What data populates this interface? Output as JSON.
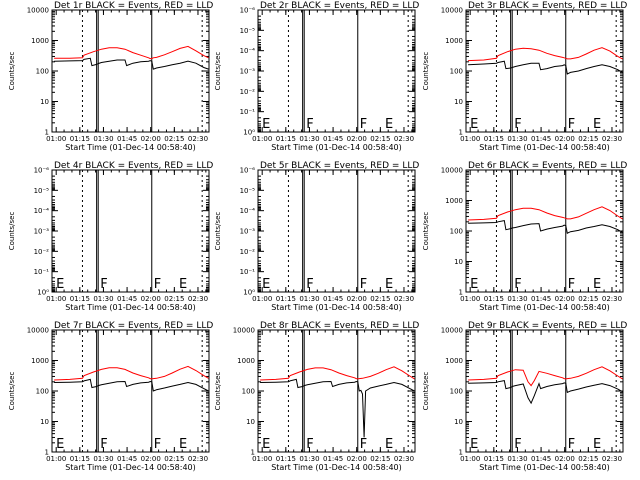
{
  "figure": {
    "xlabel": "Start Time (01-Dec-14 00:58:40)",
    "ylabel": "Counts/sec",
    "xtick_labels": [
      "01:00",
      "01:15",
      "01:30",
      "01:45",
      "02:00",
      "02:15",
      "02:30"
    ],
    "colors": {
      "events": "#000000",
      "lld": "#ff0000"
    }
  },
  "chart_data": [
    {
      "type": "line",
      "title": "Det 1r BLACK = Events, RED = LLD",
      "xlim": [
        -1.33,
        98.33
      ],
      "ylim": [
        1,
        10000
      ],
      "yscale": "log",
      "ytick_values": [
        1,
        10,
        100,
        1000,
        10000
      ],
      "ytick_labels": [
        "1",
        "10",
        "100",
        "1000",
        "10000"
      ],
      "dotted_lines": [
        18,
        94
      ],
      "solid_lines": [
        27,
        28,
        62
      ],
      "markers": [],
      "series": [
        {
          "color": "#ff0000",
          "x": [
            0,
            10,
            18,
            19,
            25,
            30,
            35,
            40,
            45,
            50,
            55,
            60,
            61,
            62,
            63,
            65,
            70,
            75,
            80,
            85,
            90,
            95,
            98
          ],
          "y": [
            260,
            260,
            270,
            330,
            430,
            520,
            580,
            580,
            520,
            400,
            330,
            270,
            255,
            255,
            270,
            280,
            340,
            430,
            550,
            640,
            460,
            320,
            270
          ]
        },
        {
          "color": "#000000",
          "x": [
            0,
            10,
            18,
            19,
            23,
            24,
            27,
            28,
            30,
            35,
            40,
            45,
            46,
            50,
            55,
            60,
            61,
            62,
            63,
            64,
            65,
            70,
            75,
            80,
            85,
            90,
            95,
            98
          ],
          "y": [
            210,
            215,
            220,
            240,
            260,
            150,
            165,
            175,
            190,
            210,
            230,
            230,
            150,
            180,
            200,
            210,
            220,
            210,
            115,
            120,
            125,
            140,
            160,
            180,
            210,
            180,
            130,
            115
          ]
        }
      ]
    },
    {
      "type": "line",
      "title": "Det 2r BLACK = Events, RED = LLD",
      "xlim": [
        -1.33,
        98.33
      ],
      "ylim": [
        1,
        1e-06
      ],
      "yscale": "log",
      "ytick_values": [
        1,
        0.1,
        0.01,
        0.001,
        0.0001,
        1e-05,
        1e-06
      ],
      "ytick_labels": [
        "10⁰",
        "10⁻¹",
        "10⁻²",
        "10⁻³",
        "10⁻⁴",
        "10⁻⁵",
        "10⁻⁶"
      ],
      "dotted_lines": [
        18,
        94
      ],
      "solid_lines": [
        27,
        28,
        62
      ],
      "markers": [
        {
          "text": "E",
          "x": 0
        },
        {
          "text": "F",
          "x": 28
        },
        {
          "text": "F",
          "x": 62
        },
        {
          "text": "E",
          "x": 78
        }
      ],
      "series": []
    },
    {
      "type": "line",
      "title": "Det 3r BLACK = Events, RED = LLD",
      "xlim": [
        -1.33,
        98.33
      ],
      "ylim": [
        1,
        10000
      ],
      "yscale": "log",
      "ytick_values": [
        1,
        10,
        100,
        1000,
        10000
      ],
      "ytick_labels": [
        "1",
        "10",
        "100",
        "1000",
        "10000"
      ],
      "dotted_lines": [
        18,
        94
      ],
      "solid_lines": [
        27,
        28,
        62
      ],
      "markers": [
        {
          "text": "E",
          "x": 0
        },
        {
          "text": "F",
          "x": 28
        },
        {
          "text": "F",
          "x": 62
        },
        {
          "text": "E",
          "x": 78
        }
      ],
      "series": [
        {
          "color": "#ff0000",
          "x": [
            0,
            10,
            18,
            19,
            25,
            30,
            35,
            40,
            45,
            50,
            55,
            60,
            61,
            62,
            63,
            65,
            70,
            75,
            80,
            85,
            90,
            95,
            98
          ],
          "y": [
            220,
            230,
            260,
            320,
            430,
            520,
            560,
            540,
            480,
            380,
            320,
            280,
            270,
            260,
            250,
            250,
            280,
            360,
            480,
            580,
            450,
            300,
            250
          ]
        },
        {
          "color": "#000000",
          "x": [
            0,
            10,
            18,
            19,
            23,
            24,
            27,
            28,
            30,
            35,
            40,
            45,
            46,
            50,
            55,
            60,
            61,
            62,
            63,
            64,
            65,
            70,
            75,
            80,
            85,
            90,
            95,
            98
          ],
          "y": [
            160,
            170,
            180,
            190,
            210,
            120,
            125,
            130,
            140,
            160,
            180,
            180,
            110,
            120,
            140,
            150,
            160,
            150,
            80,
            85,
            90,
            100,
            120,
            140,
            160,
            140,
            110,
            90
          ]
        }
      ]
    },
    {
      "type": "line",
      "title": "Det 4r BLACK = Events, RED = LLD",
      "xlim": [
        -1.33,
        98.33
      ],
      "ylim": [
        1,
        1e-06
      ],
      "yscale": "log",
      "ytick_values": [
        1,
        0.1,
        0.01,
        0.001,
        0.0001,
        1e-05,
        1e-06
      ],
      "ytick_labels": [
        "10⁰",
        "10⁻¹",
        "10⁻²",
        "10⁻³",
        "10⁻⁴",
        "10⁻⁵",
        "10⁻⁶"
      ],
      "dotted_lines": [
        18,
        94
      ],
      "solid_lines": [
        27,
        28,
        62
      ],
      "markers": [
        {
          "text": "E",
          "x": 0
        },
        {
          "text": "F",
          "x": 28
        },
        {
          "text": "F",
          "x": 62
        },
        {
          "text": "E",
          "x": 78
        }
      ],
      "series": []
    },
    {
      "type": "line",
      "title": "Det 5r BLACK = Events, RED = LLD",
      "xlim": [
        -1.33,
        98.33
      ],
      "ylim": [
        1,
        1e-06
      ],
      "yscale": "log",
      "ytick_values": [
        1,
        0.1,
        0.01,
        0.001,
        0.0001,
        1e-05,
        1e-06
      ],
      "ytick_labels": [
        "10⁰",
        "10⁻¹",
        "10⁻²",
        "10⁻³",
        "10⁻⁴",
        "10⁻⁵",
        "10⁻⁶"
      ],
      "dotted_lines": [
        18,
        94
      ],
      "solid_lines": [
        27,
        28,
        62
      ],
      "markers": [
        {
          "text": "E",
          "x": 0
        },
        {
          "text": "F",
          "x": 28
        },
        {
          "text": "F",
          "x": 62
        },
        {
          "text": "E",
          "x": 78
        }
      ],
      "series": []
    },
    {
      "type": "line",
      "title": "Det 6r BLACK = Events, RED = LLD",
      "xlim": [
        -1.33,
        98.33
      ],
      "ylim": [
        1,
        10000
      ],
      "yscale": "log",
      "ytick_values": [
        1,
        10,
        100,
        1000,
        10000
      ],
      "ytick_labels": [
        "1",
        "10",
        "100",
        "1000",
        "10000"
      ],
      "dotted_lines": [
        18,
        94
      ],
      "solid_lines": [
        27,
        28,
        62
      ],
      "markers": [
        {
          "text": "E",
          "x": 0
        },
        {
          "text": "F",
          "x": 28
        },
        {
          "text": "F",
          "x": 62
        },
        {
          "text": "E",
          "x": 78
        }
      ],
      "series": [
        {
          "color": "#ff0000",
          "x": [
            0,
            10,
            18,
            19,
            25,
            30,
            35,
            40,
            45,
            50,
            55,
            60,
            61,
            62,
            63,
            65,
            70,
            75,
            80,
            85,
            90,
            95,
            98
          ],
          "y": [
            230,
            240,
            260,
            320,
            420,
            500,
            560,
            560,
            500,
            390,
            320,
            280,
            270,
            260,
            250,
            250,
            290,
            380,
            500,
            620,
            470,
            310,
            250
          ]
        },
        {
          "color": "#000000",
          "x": [
            0,
            10,
            18,
            19,
            23,
            24,
            27,
            28,
            30,
            35,
            40,
            45,
            46,
            50,
            55,
            60,
            61,
            62,
            63,
            64,
            65,
            70,
            75,
            80,
            85,
            90,
            95,
            98
          ],
          "y": [
            180,
            185,
            190,
            200,
            220,
            110,
            120,
            125,
            130,
            150,
            170,
            175,
            100,
            115,
            130,
            145,
            155,
            150,
            85,
            90,
            95,
            105,
            125,
            140,
            160,
            140,
            110,
            90
          ]
        }
      ]
    },
    {
      "type": "line",
      "title": "Det 7r BLACK = Events, RED = LLD",
      "xlim": [
        -1.33,
        98.33
      ],
      "ylim": [
        1,
        10000
      ],
      "yscale": "log",
      "ytick_values": [
        1,
        10,
        100,
        1000,
        10000
      ],
      "ytick_labels": [
        "1",
        "10",
        "100",
        "1000",
        "10000"
      ],
      "dotted_lines": [
        18,
        94
      ],
      "solid_lines": [
        27,
        28,
        62
      ],
      "markers": [
        {
          "text": "E",
          "x": 0
        },
        {
          "text": "F",
          "x": 28
        },
        {
          "text": "F",
          "x": 62
        },
        {
          "text": "E",
          "x": 78
        }
      ],
      "series": [
        {
          "color": "#ff0000",
          "x": [
            0,
            10,
            18,
            19,
            25,
            30,
            35,
            40,
            45,
            50,
            55,
            60,
            61,
            62,
            63,
            65,
            70,
            75,
            80,
            85,
            90,
            95,
            98
          ],
          "y": [
            230,
            240,
            260,
            320,
            420,
            510,
            580,
            580,
            510,
            390,
            320,
            270,
            255,
            250,
            255,
            260,
            300,
            390,
            520,
            640,
            470,
            320,
            260
          ]
        },
        {
          "color": "#000000",
          "x": [
            0,
            10,
            18,
            19,
            23,
            24,
            27,
            28,
            30,
            35,
            40,
            45,
            46,
            50,
            55,
            60,
            61,
            62,
            63,
            64,
            65,
            70,
            75,
            80,
            85,
            90,
            95,
            98
          ],
          "y": [
            190,
            195,
            200,
            215,
            240,
            130,
            140,
            150,
            160,
            180,
            200,
            205,
            140,
            165,
            185,
            195,
            205,
            200,
            100,
            105,
            110,
            125,
            145,
            165,
            190,
            165,
            120,
            100
          ]
        }
      ]
    },
    {
      "type": "line",
      "title": "Det 8r BLACK = Events, RED = LLD",
      "xlim": [
        -1.33,
        98.33
      ],
      "ylim": [
        1,
        10000
      ],
      "yscale": "log",
      "ytick_values": [
        1,
        10,
        100,
        1000,
        10000
      ],
      "ytick_labels": [
        "1",
        "10",
        "100",
        "1000",
        "10000"
      ],
      "dotted_lines": [
        18,
        94
      ],
      "solid_lines": [
        27,
        28,
        62
      ],
      "markers": [
        {
          "text": "E",
          "x": 0
        },
        {
          "text": "F",
          "x": 28
        },
        {
          "text": "F",
          "x": 62
        },
        {
          "text": "E",
          "x": 78
        }
      ],
      "series": [
        {
          "color": "#ff0000",
          "x": [
            0,
            10,
            18,
            19,
            25,
            30,
            35,
            40,
            45,
            50,
            55,
            60,
            61,
            62,
            63,
            65,
            70,
            75,
            80,
            85,
            90,
            95,
            98
          ],
          "y": [
            230,
            240,
            260,
            320,
            420,
            510,
            570,
            570,
            500,
            390,
            320,
            270,
            255,
            250,
            255,
            260,
            300,
            380,
            500,
            620,
            460,
            310,
            250
          ]
        },
        {
          "color": "#000000",
          "x": [
            0,
            10,
            18,
            19,
            23,
            24,
            27,
            28,
            30,
            35,
            40,
            45,
            46,
            50,
            55,
            60,
            61,
            62,
            63,
            64,
            65,
            66,
            67,
            70,
            75,
            80,
            85,
            90,
            95,
            98
          ],
          "y": [
            190,
            195,
            200,
            215,
            240,
            130,
            140,
            150,
            160,
            180,
            200,
            205,
            140,
            165,
            185,
            195,
            205,
            200,
            100,
            105,
            80,
            3,
            100,
            125,
            145,
            165,
            190,
            165,
            120,
            100
          ]
        }
      ]
    },
    {
      "type": "line",
      "title": "Det 9r BLACK = Events, RED = LLD",
      "xlim": [
        -1.33,
        98.33
      ],
      "ylim": [
        1,
        10000
      ],
      "yscale": "log",
      "ytick_values": [
        1,
        10,
        100,
        1000,
        10000
      ],
      "ytick_labels": [
        "1",
        "10",
        "100",
        "1000",
        "10000"
      ],
      "dotted_lines": [
        18,
        94
      ],
      "solid_lines": [
        27,
        28,
        62
      ],
      "markers": [
        {
          "text": "E",
          "x": 0
        },
        {
          "text": "F",
          "x": 28
        },
        {
          "text": "F",
          "x": 62
        },
        {
          "text": "E",
          "x": 78
        }
      ],
      "series": [
        {
          "color": "#ff0000",
          "x": [
            0,
            10,
            18,
            19,
            25,
            30,
            35,
            38,
            40,
            42,
            45,
            50,
            55,
            60,
            61,
            62,
            63,
            65,
            70,
            75,
            80,
            85,
            90,
            95,
            98
          ],
          "y": [
            230,
            240,
            260,
            320,
            420,
            500,
            480,
            200,
            150,
            220,
            440,
            380,
            320,
            270,
            255,
            250,
            255,
            260,
            300,
            380,
            500,
            620,
            460,
            310,
            250
          ]
        },
        {
          "color": "#000000",
          "x": [
            0,
            10,
            18,
            19,
            23,
            24,
            27,
            28,
            30,
            35,
            38,
            40,
            42,
            45,
            46,
            50,
            55,
            60,
            61,
            62,
            63,
            64,
            65,
            70,
            75,
            80,
            85,
            90,
            95,
            98
          ],
          "y": [
            180,
            185,
            190,
            200,
            220,
            120,
            130,
            140,
            150,
            170,
            60,
            40,
            70,
            175,
            120,
            140,
            160,
            175,
            185,
            180,
            90,
            95,
            100,
            115,
            135,
            155,
            175,
            150,
            115,
            95
          ]
        }
      ]
    }
  ]
}
